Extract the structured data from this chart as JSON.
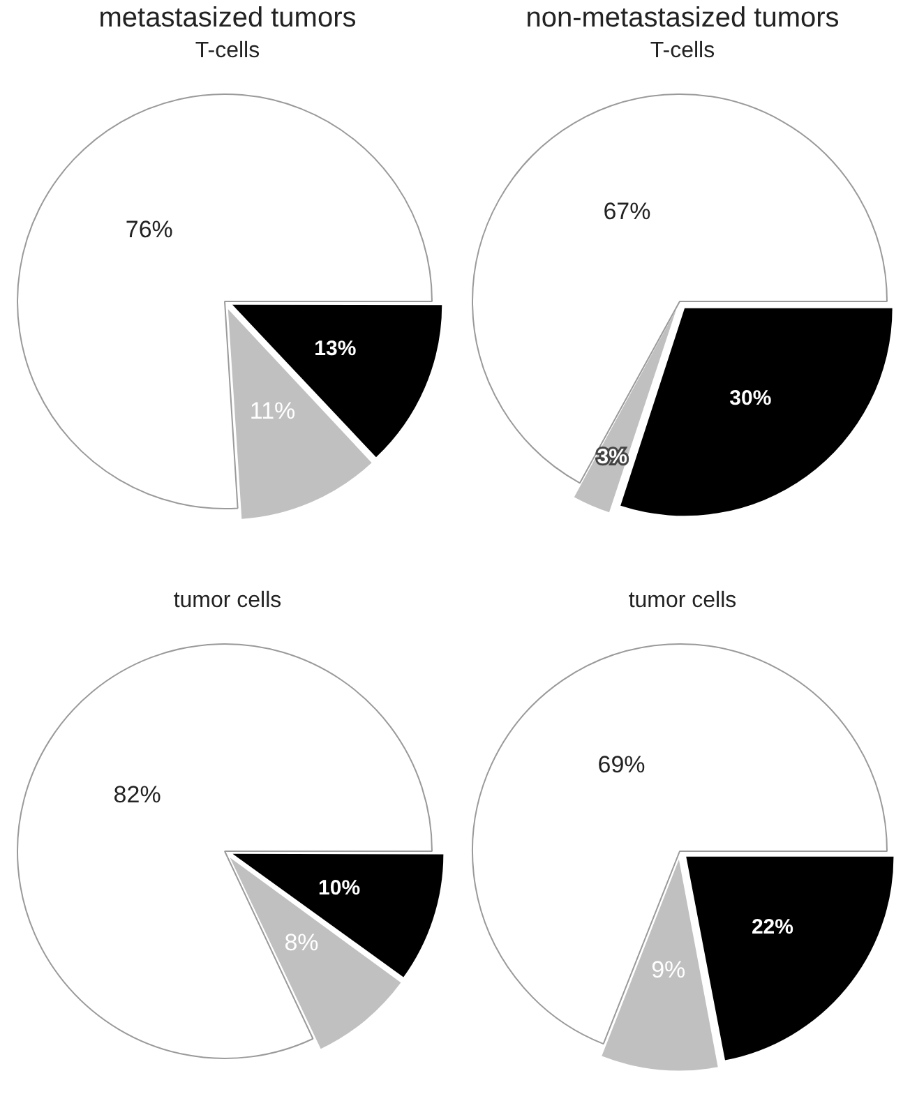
{
  "chart_data": [
    {
      "type": "pie",
      "title": "metastasized tumors",
      "subtitle": "T-cells",
      "categories": [
        null,
        null,
        null
      ],
      "values": [
        13,
        11,
        76
      ],
      "colors": [
        "#000000",
        "#c0c0c0",
        "#ffffff"
      ],
      "value_labels": [
        "13%",
        "11%",
        "76%"
      ]
    },
    {
      "type": "pie",
      "title": "non-metastasized tumors",
      "subtitle": "T-cells",
      "categories": [
        null,
        null,
        null
      ],
      "values": [
        30,
        3,
        67
      ],
      "colors": [
        "#000000",
        "#c0c0c0",
        "#ffffff"
      ],
      "value_labels": [
        "30%",
        "3%",
        "67%"
      ]
    },
    {
      "type": "pie",
      "subtitle": "tumor cells",
      "categories": [
        null,
        null,
        null
      ],
      "values": [
        10,
        8,
        82
      ],
      "colors": [
        "#000000",
        "#c0c0c0",
        "#ffffff"
      ],
      "value_labels": [
        "10%",
        "8%",
        "82%"
      ]
    },
    {
      "type": "pie",
      "subtitle": "tumor cells",
      "categories": [
        null,
        null,
        null
      ],
      "values": [
        22,
        9,
        69
      ],
      "colors": [
        "#000000",
        "#c0c0c0",
        "#ffffff"
      ],
      "value_labels": [
        "22%",
        "9%",
        "69%"
      ]
    }
  ]
}
